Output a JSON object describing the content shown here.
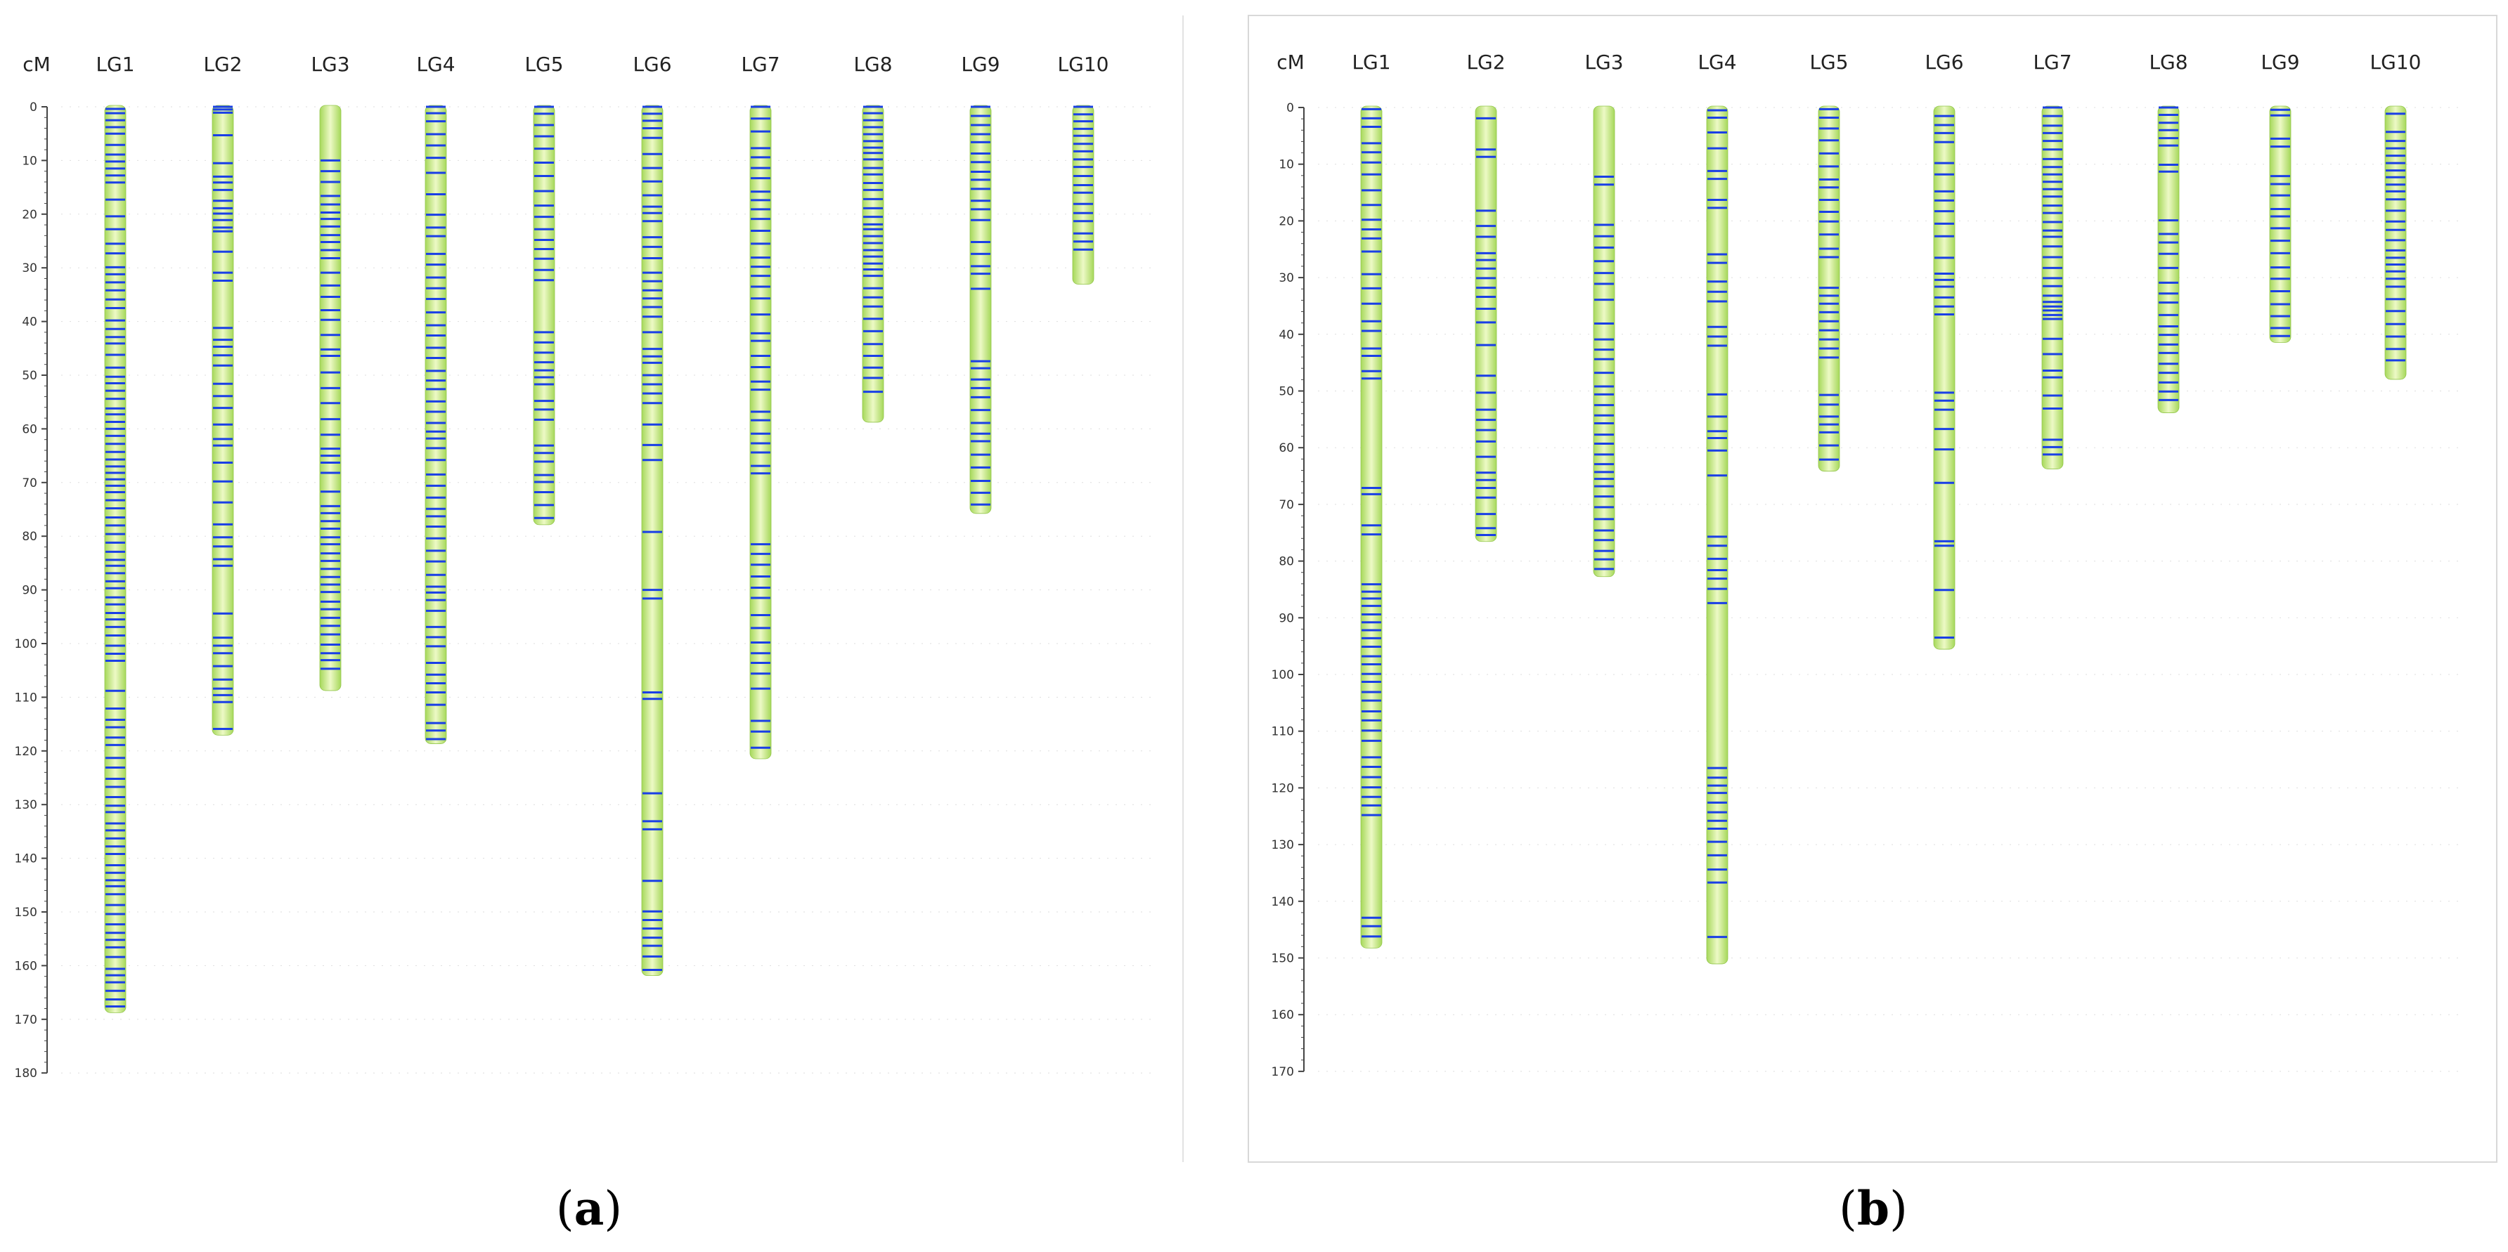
{
  "colors": {
    "chromosome_edge": "#a6d85a",
    "chromosome_center": "#edf9c6",
    "marker": "#1a3fe6",
    "axis": "#444444",
    "grid_dot": "#dddddd",
    "frame": "#d8d8d8"
  },
  "chart_data": [
    {
      "type": "linkage-map",
      "panel_label": "a",
      "unit": "cM",
      "ylim": [
        0,
        180
      ],
      "tick_step": 10,
      "frame": "right-edge-only",
      "groups": [
        {
          "name": "LG1",
          "length": 168.5,
          "markers": [
            0.4,
            1.2,
            2.5,
            3.8,
            5,
            7.1,
            8.9,
            10.2,
            11.5,
            12.8,
            14.1,
            17.3,
            20.4,
            22.8,
            25.5,
            27.3,
            29.9,
            31.2,
            32.7,
            34.2,
            35.9,
            37.5,
            39.8,
            41.4,
            42.9,
            44.1,
            46.2,
            48.6,
            50.3,
            51.5,
            52.9,
            54.4,
            56.2,
            57.3,
            58.7,
            60,
            61.3,
            62.8,
            64.3,
            65.7,
            67,
            68.2,
            69.4,
            70.6,
            71.8,
            73.3,
            74.8,
            76.5,
            78,
            79.6,
            81.2,
            82.9,
            84.4,
            85.5,
            86.9,
            88.4,
            89.7,
            91.4,
            92.7,
            94.3,
            95.5,
            96.9,
            98.5,
            100.4,
            101.9,
            103.2,
            108.8,
            112.1,
            114.2,
            115.6,
            117.5,
            118.9,
            121.3,
            123.1,
            125.2,
            126.7,
            128.6,
            130.2,
            131.4,
            133.5,
            134.8,
            136.3,
            137.8,
            139.2,
            141.3,
            142.7,
            144.1,
            145.2,
            146.7,
            148.7,
            150.4,
            152.3,
            153.9,
            155.2,
            156.6,
            158.4,
            160.6,
            161.8,
            163.1,
            164.7,
            166.3,
            167.6
          ]
        },
        {
          "name": "LG2",
          "length": 116.8,
          "markers": [
            0,
            0.5,
            1.1,
            5.3,
            10.5,
            13,
            14.1,
            15.5,
            17.5,
            18.9,
            19.9,
            21.1,
            22.5,
            23.2,
            27,
            30.9,
            32.4,
            41.2,
            43.4,
            44.7,
            46.3,
            48.2,
            51.6,
            53.9,
            56.1,
            59.2,
            61.9,
            63.1,
            66.3,
            69.8,
            73.7,
            77.8,
            80.2,
            81.9,
            84.3,
            85.5,
            94.4,
            98.9,
            100.4,
            101.8,
            104.2,
            106.7,
            108.4,
            109.6,
            110.9,
            115.9
          ]
        },
        {
          "name": "LG3",
          "length": 108.5,
          "markers": [
            10,
            12,
            14,
            16.6,
            18.2,
            19.7,
            20.9,
            22.3,
            23.9,
            25.2,
            26.7,
            28.2,
            30.9,
            33.3,
            35.4,
            37.9,
            39.7,
            42.5,
            45.2,
            46.4,
            49.5,
            52.4,
            55.2,
            58.2,
            61.1,
            63.7,
            65,
            66.3,
            68.2,
            71.7,
            74.4,
            75.7,
            77.2,
            78.6,
            80.2,
            81.5,
            83.2,
            84.6,
            86.1,
            87.6,
            89,
            90.4,
            92.2,
            93.6,
            95.2,
            96.7,
            98.3,
            100.2,
            101.8,
            103.1,
            104.7
          ]
        },
        {
          "name": "LG4",
          "length": 118.4,
          "markers": [
            0,
            1.2,
            2.7,
            5.1,
            7.2,
            9.5,
            12.3,
            16.3,
            20.1,
            22.5,
            24.1,
            27.4,
            29.4,
            31.8,
            33.8,
            35.8,
            38.3,
            40.7,
            42.6,
            44.9,
            46.8,
            49.2,
            51,
            52.6,
            54.9,
            56.8,
            58.9,
            60.5,
            61.8,
            63.6,
            65.8,
            68.5,
            70.6,
            72.8,
            74.9,
            76.3,
            78.2,
            80.4,
            82.7,
            84.7,
            87.2,
            89.4,
            90.5,
            91.9,
            93.9,
            96.9,
            98.8,
            100.5,
            103.6,
            105.8,
            107.4,
            109.1,
            111.4,
            114.8,
            116.2,
            117.8
          ]
        },
        {
          "name": "LG5",
          "length": 77.6,
          "markers": [
            0,
            1.3,
            3.4,
            5.5,
            7.8,
            10.4,
            12.9,
            15.7,
            18.4,
            20.5,
            22.8,
            24.8,
            26.5,
            28.3,
            30.4,
            32.3,
            42,
            43.9,
            45.8,
            47.6,
            49.1,
            50.4,
            51.7,
            54.8,
            56.4,
            58.3,
            63.1,
            64.5,
            66.1,
            68.6,
            69.9,
            71.8,
            74.2,
            76.6
          ]
        },
        {
          "name": "LG6",
          "length": 161.6,
          "markers": [
            0,
            1.3,
            2.6,
            4,
            5.8,
            8.8,
            11.4,
            13.9,
            16.5,
            18.6,
            19.8,
            21.3,
            24.3,
            26.1,
            28.2,
            30.9,
            32.5,
            34.2,
            35.7,
            37.3,
            39.1,
            42,
            45.1,
            46.5,
            47.7,
            50,
            51.7,
            53.4,
            55.2,
            59.2,
            63,
            65.8,
            79.2,
            90,
            91.6,
            109.1,
            110.3,
            127.9,
            133.1,
            134.6,
            144.2,
            149.9,
            151.5,
            153.1,
            154.8,
            156.3,
            158.3,
            160.8
          ]
        },
        {
          "name": "LG7",
          "length": 121.2,
          "markers": [
            0,
            2.2,
            4.6,
            7.7,
            9.4,
            11.4,
            13.3,
            15.8,
            17.4,
            19.1,
            20.9,
            23.1,
            25.5,
            28.1,
            29.8,
            31.5,
            33.5,
            35.7,
            38.7,
            42.2,
            43.6,
            46.4,
            48.5,
            51.2,
            52.7,
            56.8,
            58.4,
            60.9,
            62.7,
            64.4,
            66.9,
            68.3,
            81.5,
            83.3,
            85.3,
            87.5,
            89.6,
            91.5,
            94.7,
            97.1,
            99.8,
            101.8,
            103.6,
            105.6,
            108.4,
            114.4,
            116.4,
            119.4
          ]
        },
        {
          "name": "LG8",
          "length": 58.5,
          "markers": [
            0,
            1.2,
            2.5,
            3.8,
            5.1,
            6.4,
            7.6,
            8.6,
            9.8,
            11.4,
            12.6,
            14.2,
            15.5,
            17.2,
            18.9,
            20.5,
            21.9,
            22.8,
            24.1,
            25.4,
            26.7,
            27.9,
            29.2,
            30.3,
            31.5,
            33.8,
            35.5,
            37.2,
            39.5,
            41.8,
            44.2,
            46.4,
            48.6,
            50.5,
            53.1
          ]
        },
        {
          "name": "LG9",
          "length": 75.5,
          "markers": [
            0,
            1.7,
            3.4,
            5.1,
            6.6,
            8.7,
            10.3,
            12.1,
            13.6,
            15.3,
            17.5,
            19.1,
            21.1,
            25.2,
            27.4,
            29.7,
            31.1,
            33.9,
            47.4,
            48.7,
            50.8,
            52.4,
            54.1,
            56.5,
            58.9,
            60.9,
            62.3,
            64.8,
            67.2,
            69.7,
            71.9,
            74.1
          ]
        },
        {
          "name": "LG10",
          "length": 32.8,
          "markers": [
            0,
            1.4,
            2.7,
            4.1,
            5.4,
            6.9,
            8.3,
            9.8,
            11.2,
            12.9,
            14.6,
            16,
            18.1,
            19.8,
            21.3,
            23.6,
            25.1,
            26.6
          ]
        }
      ]
    },
    {
      "type": "linkage-map",
      "panel_label": "b",
      "unit": "cM",
      "ylim": [
        0,
        170
      ],
      "tick_step": 10,
      "frame": "box",
      "groups": [
        {
          "name": "LG1",
          "length": 148,
          "markers": [
            0.3,
            1.9,
            3.4,
            6.3,
            7.9,
            9.7,
            11.8,
            14.6,
            17.2,
            19.8,
            21.5,
            23.1,
            25.4,
            29.4,
            31.9,
            34.6,
            37.7,
            39.4,
            42.5,
            43.8,
            46.5,
            47.8,
            67.1,
            68.2,
            73.7,
            75.3,
            84.1,
            85.4,
            86.6,
            87.9,
            89.4,
            90.8,
            92.2,
            93.6,
            95.1,
            96.8,
            98.2,
            99.9,
            101.3,
            103.1,
            104.6,
            106.5,
            108.1,
            109.9,
            111.7,
            114.6,
            116.3,
            118.1,
            119.9,
            121.6,
            123.1,
            124.8,
            142.9,
            144.4,
            146.2
          ]
        },
        {
          "name": "LG2",
          "length": 76.3,
          "markers": [
            1.9,
            7.4,
            8.7,
            18.2,
            20.9,
            22.8,
            25.7,
            26.9,
            28.4,
            30.1,
            31.8,
            33.4,
            35.5,
            37.9,
            41.9,
            47.3,
            50.3,
            53.3,
            55.1,
            56.9,
            58.9,
            61.6,
            64.4,
            65.7,
            67.1,
            68.8,
            71.7,
            74.2,
            75.4
          ]
        },
        {
          "name": "LG3",
          "length": 82.5,
          "markers": [
            12.2,
            13.6,
            20.7,
            22.7,
            24.7,
            27.1,
            29.2,
            31.1,
            33.9,
            38.1,
            40.9,
            42.7,
            44.4,
            46.8,
            49.2,
            50.6,
            52.5,
            54.3,
            55.7,
            57.7,
            59.3,
            61.2,
            62.9,
            64.3,
            65.5,
            66.8,
            68.6,
            70.5,
            72.6,
            74.6,
            76.3,
            78.2,
            79.7,
            81.4
          ]
        },
        {
          "name": "LG4",
          "length": 150.8,
          "markers": [
            0.5,
            1.8,
            4.4,
            7.2,
            11.2,
            12.6,
            16.3,
            17.7,
            25.9,
            27.4,
            30.7,
            32.5,
            34.2,
            38.7,
            40.4,
            42,
            50.6,
            54.5,
            57.1,
            58.3,
            60.5,
            64.9,
            75.7,
            77.3,
            79.6,
            81.6,
            83.1,
            84.9,
            87.4,
            116.5,
            118.2,
            119.6,
            120.9,
            122.6,
            124.3,
            125.8,
            127.2,
            129.5,
            131.9,
            134.4,
            136.7,
            146.3
          ]
        },
        {
          "name": "LG5",
          "length": 63.9,
          "markers": [
            0.3,
            1.8,
            3.7,
            5.8,
            8.1,
            10.4,
            12.7,
            14.1,
            16.3,
            18.4,
            20.1,
            22.4,
            24.9,
            26.4,
            31.8,
            33.2,
            34.6,
            36.1,
            37.7,
            39.3,
            40.9,
            42.5,
            44.1,
            50.7,
            52.4,
            54.5,
            55.9,
            57.3,
            59.6,
            62.1
          ]
        },
        {
          "name": "LG6",
          "length": 95.3,
          "markers": [
            1.5,
            3.1,
            4.5,
            6.1,
            9.8,
            11.8,
            14.8,
            16.4,
            18.3,
            20.5,
            22.7,
            26.5,
            29.3,
            30.4,
            31.6,
            33.5,
            35.1,
            36.5,
            50.3,
            51.7,
            53.3,
            56.7,
            60.3,
            66.2,
            76.5,
            77.3,
            85.1,
            93.5
          ]
        },
        {
          "name": "LG7",
          "length": 63.5,
          "markers": [
            0,
            1.5,
            3.2,
            4.5,
            5.9,
            7.4,
            9.1,
            10.5,
            11.8,
            13.1,
            14.4,
            15.7,
            17.3,
            18.6,
            20.2,
            21.7,
            22.8,
            24.5,
            26.4,
            28.3,
            30.1,
            31.5,
            33.2,
            34.3,
            35.1,
            35.8,
            36.6,
            37.3,
            40.8,
            43.5,
            46.4,
            47.6,
            50.8,
            53.1,
            58.6,
            59.9,
            61.2
          ]
        },
        {
          "name": "LG8",
          "length": 53.6,
          "markers": [
            0,
            1.3,
            2.7,
            4,
            5.4,
            6.7,
            10.1,
            11.3,
            19.9,
            22.3,
            23.8,
            25.8,
            28.3,
            30.9,
            32.8,
            34.4,
            36.6,
            38.6,
            40.1,
            41.8,
            43.3,
            45.2,
            46.8,
            48.5,
            50.1,
            51.6
          ]
        },
        {
          "name": "LG9",
          "length": 41.2,
          "markers": [
            0.4,
            1.4,
            5.5,
            6.9,
            12.1,
            13.5,
            15.5,
            17.9,
            19.2,
            21.3,
            23.5,
            25.7,
            28.2,
            30.2,
            32.4,
            34.7,
            36.8,
            38.9,
            40.3
          ]
        },
        {
          "name": "LG10",
          "length": 47.7,
          "markers": [
            1.1,
            4.3,
            5.9,
            7.2,
            8.5,
            9.8,
            11.1,
            12.3,
            13.6,
            14.8,
            16.2,
            18.2,
            20.1,
            21.6,
            23.4,
            25.2,
            26.5,
            27.7,
            28.9,
            30.2,
            31.6,
            33.8,
            35.9,
            38.2,
            40.4,
            42.6,
            44.6
          ]
        }
      ]
    }
  ]
}
